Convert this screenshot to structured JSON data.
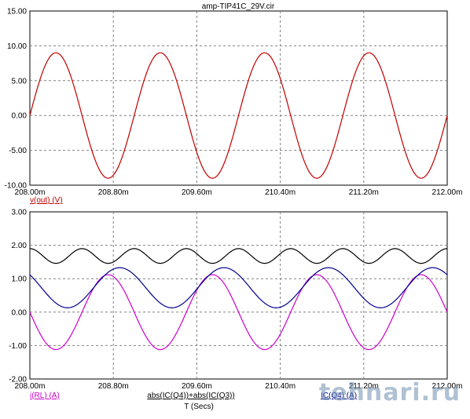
{
  "chart_data": [
    {
      "type": "line",
      "title": "amp-TIP41C_29V.cir",
      "x_range": [
        208.0,
        212.0
      ],
      "x_ticks": [
        "208.00m",
        "208.80m",
        "209.60m",
        "210.40m",
        "211.20m",
        "212.00m"
      ],
      "y_range": [
        -10,
        15
      ],
      "y_ticks": [
        "15.00",
        "10.00",
        "5.00",
        "0.00",
        "-5.00",
        "-10.00"
      ],
      "grid": true,
      "series": [
        {
          "name": "v(out) (V)",
          "color": "#c00000",
          "waveform": "sine",
          "offset": 0,
          "amplitude": 9.0,
          "period": 1.0,
          "phase_deg": 0,
          "x": [
            208.0,
            208.25,
            208.5,
            208.75,
            209.0,
            209.25,
            209.5,
            209.75,
            210.0,
            210.25,
            210.5,
            210.75,
            211.0,
            211.25,
            211.5,
            211.75,
            212.0
          ],
          "y": [
            0,
            9,
            0,
            -9,
            0,
            9,
            0,
            -9,
            0,
            9,
            0,
            -9,
            0,
            9,
            0,
            -9,
            0
          ]
        }
      ]
    },
    {
      "type": "line",
      "x_range": [
        208.0,
        212.0
      ],
      "x_ticks": [
        "208.00m",
        "208.80m",
        "209.60m",
        "210.40m",
        "211.20m",
        "212.00m"
      ],
      "xlabel": "T (Secs)",
      "y_range": [
        -2,
        3
      ],
      "y_ticks": [
        "3.00",
        "2.00",
        "1.00",
        "0.00",
        "-1.00",
        "-2.00"
      ],
      "grid": true,
      "series": [
        {
          "name": "i(RL) (A)",
          "color": "#cc00cc",
          "waveform": "sine",
          "offset": 0,
          "amplitude": 1.12,
          "period": 1.0,
          "phase_deg": 180,
          "x": [
            208.0,
            208.25,
            208.5,
            208.75,
            209.0,
            209.25,
            209.5,
            209.75,
            210.0,
            210.25,
            210.5,
            210.75,
            211.0,
            211.25,
            211.5,
            211.75,
            212.0
          ],
          "y": [
            0,
            -1.12,
            0,
            1.12,
            0,
            -1.12,
            0,
            1.12,
            0,
            -1.12,
            0,
            1.12,
            0,
            -1.12,
            0,
            1.12,
            0
          ]
        },
        {
          "name": "abs(IC(Q4))+abs(IC(Q3))",
          "color": "#000000",
          "waveform": "sine",
          "offset": 1.68,
          "amplitude": 0.22,
          "period": 0.5,
          "phase_deg": 90,
          "x": [
            208.0,
            208.25,
            208.5,
            208.75,
            209.0,
            209.25,
            209.5,
            209.75,
            210.0,
            210.25,
            210.5,
            210.75,
            211.0,
            211.25,
            211.5,
            211.75,
            212.0
          ],
          "y": [
            1.9,
            1.46,
            1.9,
            1.46,
            1.9,
            1.46,
            1.9,
            1.46,
            1.9,
            1.46,
            1.9,
            1.46,
            1.9,
            1.46,
            1.9,
            1.46,
            1.9
          ]
        },
        {
          "name": "IC(Q4) (A)",
          "color": "#00008b",
          "waveform": "sine",
          "offset": 0.73,
          "amplitude": 0.6,
          "period": 1.0,
          "phase_deg": 140,
          "x": [
            208.0,
            208.25,
            208.5,
            208.75,
            209.0,
            209.25,
            209.5,
            209.75,
            210.0,
            210.25,
            210.5,
            210.75,
            211.0,
            211.25,
            211.5,
            211.75,
            212.0
          ],
          "y": [
            1.12,
            0.27,
            0.34,
            1.19,
            1.12,
            0.27,
            0.34,
            1.19,
            1.12,
            0.27,
            0.34,
            1.19,
            1.12,
            0.27,
            0.34,
            1.19,
            1.12
          ]
        }
      ]
    }
  ],
  "watermark_text": "tehnari.ru"
}
